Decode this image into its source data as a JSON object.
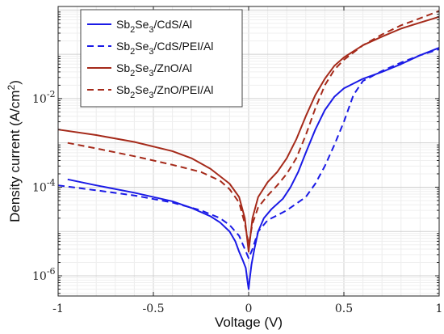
{
  "chart_data": {
    "type": "line",
    "xlabel": "Voltage (V)",
    "ylabel": {
      "prefix": "Density current (A/cm",
      "sup": "2",
      "suffix": ")"
    },
    "xlim": [
      -1,
      1
    ],
    "ylim": [
      3.5e-07,
      1.2
    ],
    "yscale": "log",
    "xticks": [
      {
        "v": -1,
        "label": "-1"
      },
      {
        "v": -0.5,
        "label": "-0.5"
      },
      {
        "v": 0,
        "label": "0"
      },
      {
        "v": 0.5,
        "label": "0.5"
      },
      {
        "v": 1,
        "label": "1"
      }
    ],
    "yticks": [
      {
        "v": 1e-06,
        "base": "10",
        "exp": "-6"
      },
      {
        "v": 0.0001,
        "base": "10",
        "exp": "-4"
      },
      {
        "v": 0.01,
        "base": "10",
        "exp": "-2"
      }
    ],
    "grid": true,
    "legend_position": "top-left",
    "series": [
      {
        "name": "Sb2Se3/CdS/Al",
        "legend": {
          "p1": "Sb",
          "s1": "2",
          "p2": "Se",
          "s2": "3",
          "p3": "/CdS/Al"
        },
        "color": "#1a1ae6",
        "dash": "solid",
        "points": [
          [
            -0.95,
            0.00015
          ],
          [
            -0.8,
            0.00011
          ],
          [
            -0.6,
            7.5e-05
          ],
          [
            -0.4,
            4.8e-05
          ],
          [
            -0.3,
            3.4e-05
          ],
          [
            -0.2,
            2.2e-05
          ],
          [
            -0.15,
            1.6e-05
          ],
          [
            -0.1,
            1e-05
          ],
          [
            -0.07,
            6e-06
          ],
          [
            -0.05,
            3.5e-06
          ],
          [
            -0.03,
            2.2e-06
          ],
          [
            -0.015,
            1.5e-06
          ],
          [
            -0.005,
            7e-07
          ],
          [
            0.0,
            5e-07
          ],
          [
            0.005,
            8e-07
          ],
          [
            0.015,
            1.8e-06
          ],
          [
            0.03,
            4e-06
          ],
          [
            0.05,
            1e-05
          ],
          [
            0.08,
            2e-05
          ],
          [
            0.12,
            3.2e-05
          ],
          [
            0.18,
            5.5e-05
          ],
          [
            0.22,
            0.0001
          ],
          [
            0.26,
            0.00022
          ],
          [
            0.3,
            0.0006
          ],
          [
            0.35,
            0.002
          ],
          [
            0.4,
            0.0055
          ],
          [
            0.45,
            0.011
          ],
          [
            0.5,
            0.017
          ],
          [
            0.6,
            0.028
          ],
          [
            0.7,
            0.04
          ],
          [
            0.8,
            0.06
          ],
          [
            0.9,
            0.095
          ],
          [
            1.0,
            0.14
          ]
        ]
      },
      {
        "name": "Sb2Se3/CdS/PEI/Al",
        "legend": {
          "p1": "Sb",
          "s1": "2",
          "p2": "Se",
          "s2": "3",
          "p3": "/CdS/PEI/Al"
        },
        "color": "#1a1ae6",
        "dash": "dashed",
        "points": [
          [
            -1.0,
            0.00011
          ],
          [
            -0.8,
            8.5e-05
          ],
          [
            -0.6,
            6.5e-05
          ],
          [
            -0.4,
            4.5e-05
          ],
          [
            -0.25,
            3e-05
          ],
          [
            -0.15,
            2e-05
          ],
          [
            -0.1,
            1.4e-05
          ],
          [
            -0.05,
            8e-06
          ],
          [
            -0.02,
            4e-06
          ],
          [
            0.0,
            2.5e-06
          ],
          [
            0.02,
            4e-06
          ],
          [
            0.05,
            1e-05
          ],
          [
            0.1,
            1.8e-05
          ],
          [
            0.2,
            3e-05
          ],
          [
            0.3,
            6e-05
          ],
          [
            0.35,
            0.00012
          ],
          [
            0.4,
            0.0003
          ],
          [
            0.45,
            0.0009
          ],
          [
            0.5,
            0.003
          ],
          [
            0.55,
            0.012
          ],
          [
            0.6,
            0.025
          ],
          [
            0.7,
            0.042
          ],
          [
            0.8,
            0.065
          ],
          [
            0.9,
            0.095
          ],
          [
            1.0,
            0.13
          ]
        ]
      },
      {
        "name": "Sb2Se3/ZnO/Al",
        "legend": {
          "p1": "Sb",
          "s1": "2",
          "p2": "Se",
          "s2": "3",
          "p3": "/ZnO/Al"
        },
        "color": "#a52a1a",
        "dash": "solid",
        "points": [
          [
            -1.0,
            0.002
          ],
          [
            -0.8,
            0.0015
          ],
          [
            -0.6,
            0.00105
          ],
          [
            -0.4,
            0.00065
          ],
          [
            -0.3,
            0.00045
          ],
          [
            -0.2,
            0.00026
          ],
          [
            -0.1,
            0.00012
          ],
          [
            -0.05,
            6e-05
          ],
          [
            -0.02,
            2e-05
          ],
          [
            0.0,
            3.5e-06
          ],
          [
            0.02,
            2e-05
          ],
          [
            0.05,
            6e-05
          ],
          [
            0.1,
            0.00013
          ],
          [
            0.15,
            0.00022
          ],
          [
            0.2,
            0.00045
          ],
          [
            0.25,
            0.0012
          ],
          [
            0.3,
            0.004
          ],
          [
            0.35,
            0.012
          ],
          [
            0.4,
            0.028
          ],
          [
            0.45,
            0.055
          ],
          [
            0.5,
            0.085
          ],
          [
            0.6,
            0.16
          ],
          [
            0.7,
            0.25
          ],
          [
            0.8,
            0.38
          ],
          [
            0.9,
            0.52
          ],
          [
            1.0,
            0.7
          ]
        ]
      },
      {
        "name": "Sb2Se3/ZnO/PEI/Al",
        "legend": {
          "p1": "Sb",
          "s1": "2",
          "p2": "Se",
          "s2": "3",
          "p3": "/ZnO/PEI/Al"
        },
        "color": "#a52a1a",
        "dash": "dashed",
        "points": [
          [
            -0.95,
            0.001
          ],
          [
            -0.8,
            0.00075
          ],
          [
            -0.6,
            0.0005
          ],
          [
            -0.4,
            0.00032
          ],
          [
            -0.25,
            0.00022
          ],
          [
            -0.15,
            0.00014
          ],
          [
            -0.1,
            9e-05
          ],
          [
            -0.05,
            4.5e-05
          ],
          [
            -0.02,
            1.5e-05
          ],
          [
            0.0,
            5e-06
          ],
          [
            0.02,
            1.5e-05
          ],
          [
            0.05,
            3.5e-05
          ],
          [
            0.1,
            6.5e-05
          ],
          [
            0.15,
            0.00011
          ],
          [
            0.2,
            0.0002
          ],
          [
            0.25,
            0.00045
          ],
          [
            0.3,
            0.0015
          ],
          [
            0.35,
            0.006
          ],
          [
            0.4,
            0.02
          ],
          [
            0.45,
            0.045
          ],
          [
            0.5,
            0.075
          ],
          [
            0.6,
            0.16
          ],
          [
            0.7,
            0.28
          ],
          [
            0.8,
            0.45
          ],
          [
            0.9,
            0.65
          ],
          [
            1.0,
            0.95
          ]
        ]
      }
    ]
  }
}
